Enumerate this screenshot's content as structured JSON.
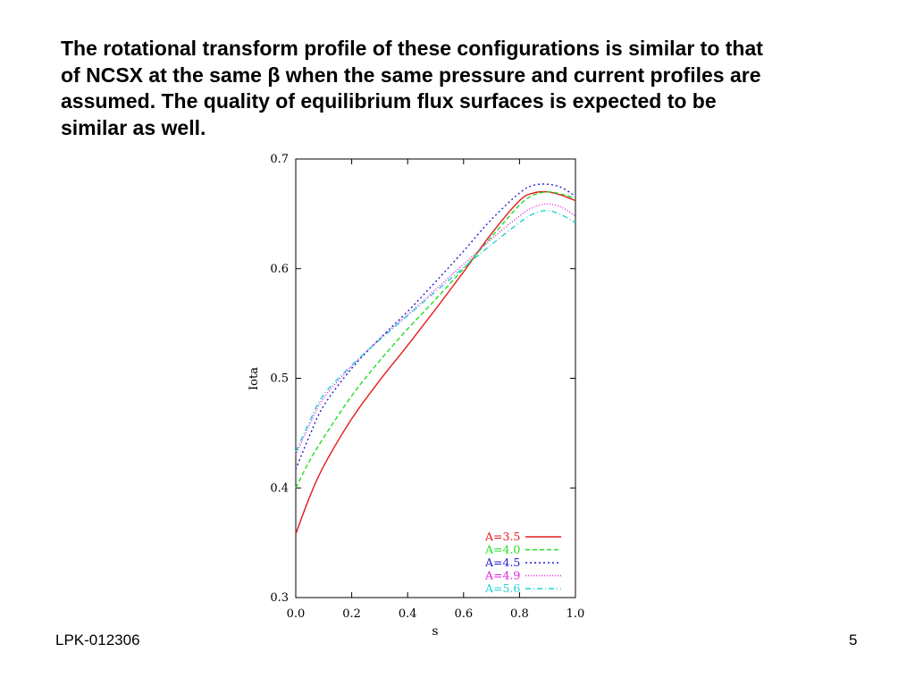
{
  "slide": {
    "heading_lines": [
      "The rotational transform profile of these configurations is similar to that",
      "of NCSX at the same β when the same pressure and current profiles are",
      "assumed. The quality of equilibrium flux surfaces is expected to be",
      "similar as well."
    ],
    "footer_left": "LPK-012306",
    "page_number": "5"
  },
  "chart_data": {
    "type": "line",
    "title": "",
    "xlabel": "s",
    "ylabel": "Iota",
    "xlim": [
      0.0,
      1.0
    ],
    "ylim": [
      0.3,
      0.7
    ],
    "xticks": [
      "0.0",
      "0.2",
      "0.4",
      "0.6",
      "0.8",
      "1.0"
    ],
    "yticks": [
      "0.3",
      "0.4",
      "0.5",
      "0.6",
      "0.7"
    ],
    "grid": false,
    "legend_position": "bottom-right",
    "x": [
      0.0,
      0.05,
      0.1,
      0.2,
      0.3,
      0.4,
      0.5,
      0.6,
      0.7,
      0.8,
      0.85,
      0.9,
      0.95,
      1.0
    ],
    "series": [
      {
        "name": "A=3.5",
        "color": "#e41a1c",
        "dash": "solid",
        "values": [
          0.358,
          0.392,
          0.42,
          0.463,
          0.498,
          0.53,
          0.563,
          0.597,
          0.632,
          0.662,
          0.669,
          0.67,
          0.667,
          0.662
        ]
      },
      {
        "name": "A=4.0",
        "color": "#22dd22",
        "dash": "dashed",
        "values": [
          0.4,
          0.425,
          0.446,
          0.484,
          0.516,
          0.545,
          0.572,
          0.6,
          0.629,
          0.658,
          0.667,
          0.67,
          0.668,
          0.664
        ]
      },
      {
        "name": "A=4.5",
        "color": "#1f1fcc",
        "dash": "dotted",
        "values": [
          0.417,
          0.448,
          0.475,
          0.509,
          0.536,
          0.561,
          0.588,
          0.616,
          0.645,
          0.669,
          0.676,
          0.677,
          0.674,
          0.666
        ]
      },
      {
        "name": "A=4.9",
        "color": "#e020e0",
        "dash": "dotted-fine",
        "values": [
          0.43,
          0.458,
          0.482,
          0.511,
          0.536,
          0.558,
          0.581,
          0.604,
          0.627,
          0.648,
          0.656,
          0.659,
          0.656,
          0.648
        ]
      },
      {
        "name": "A=5.6",
        "color": "#22d4d4",
        "dash": "dash-dot",
        "values": [
          0.433,
          0.461,
          0.485,
          0.512,
          0.535,
          0.557,
          0.579,
          0.601,
          0.622,
          0.642,
          0.65,
          0.653,
          0.649,
          0.642
        ]
      }
    ]
  }
}
